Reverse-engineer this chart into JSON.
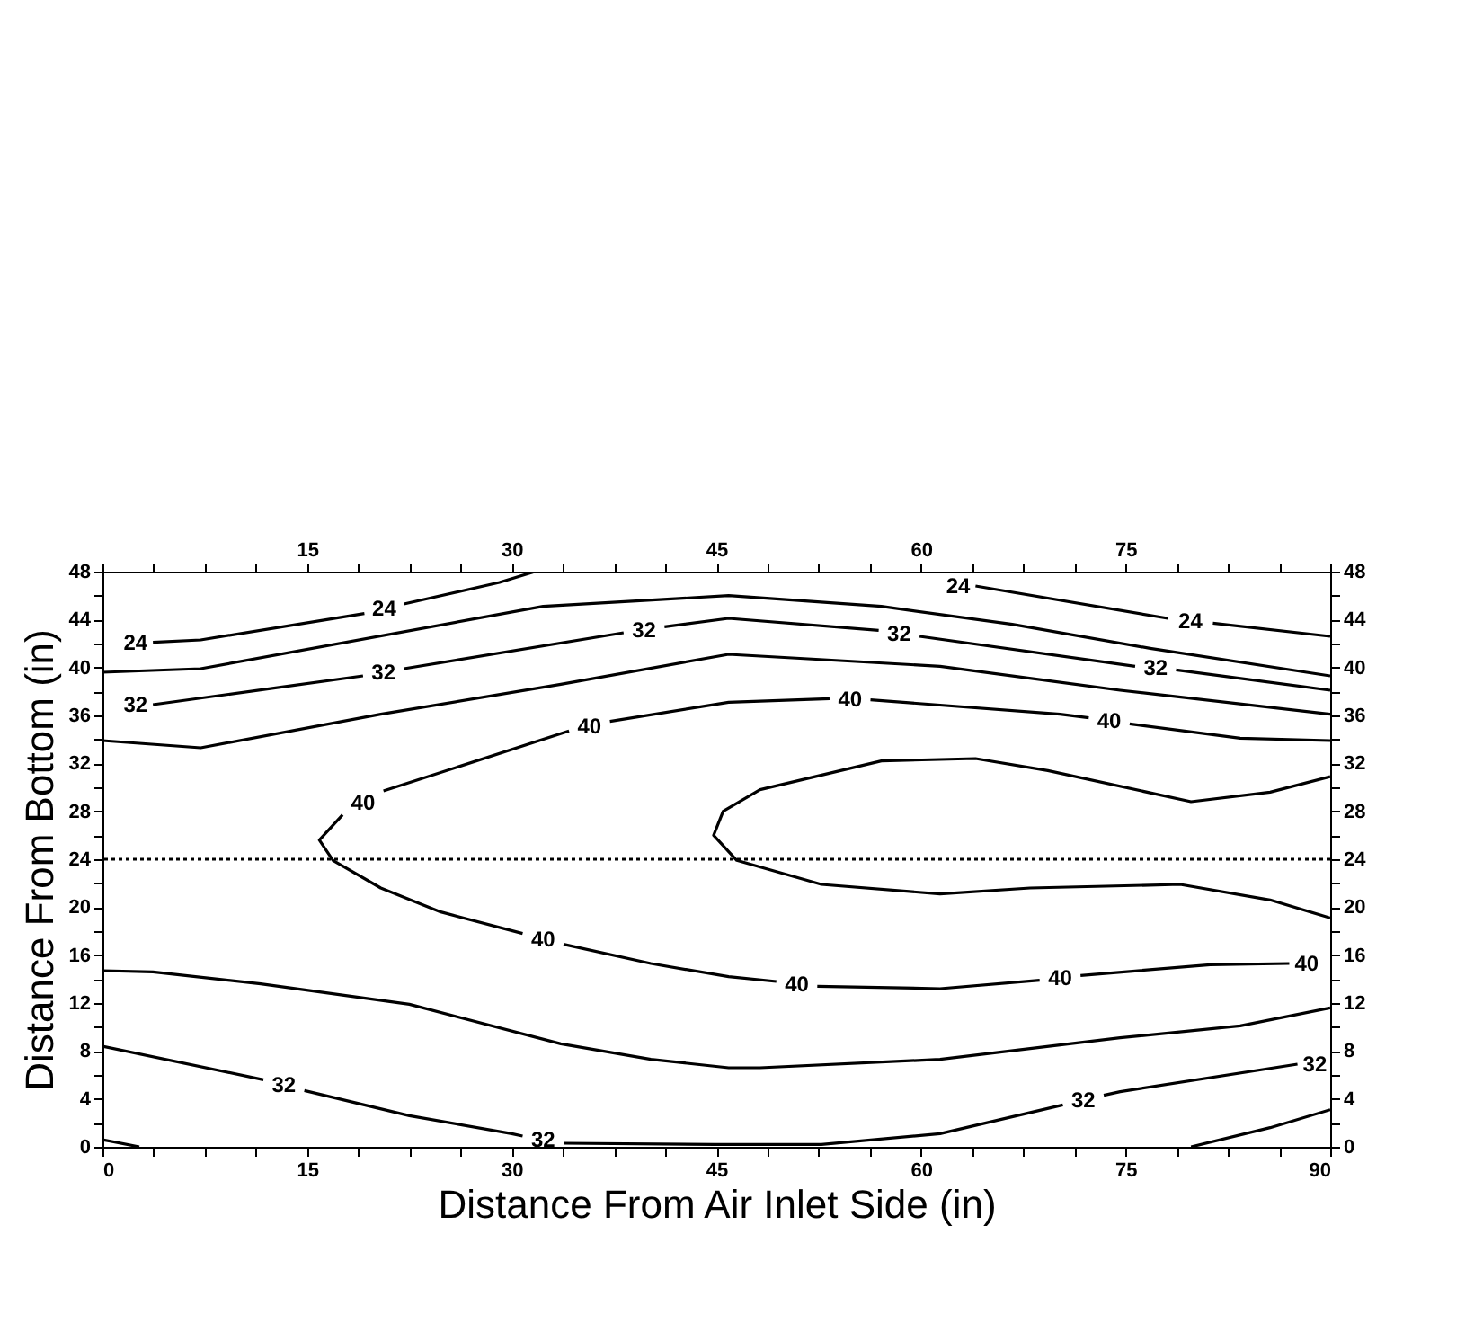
{
  "chart_data": {
    "type": "line",
    "xlabel": "Distance From Air Inlet Side (in)",
    "ylabel": "Distance From Bottom (in)",
    "xlim": [
      0,
      90
    ],
    "ylim": [
      0,
      48
    ],
    "x2lim": [
      0,
      90
    ],
    "y2lim": [
      0,
      48
    ],
    "xticks": [
      0,
      {
        "value": 3.75,
        "label": null
      },
      {
        "value": 7.5,
        "label": null
      },
      {
        "value": 11.25,
        "label": null
      },
      15,
      {
        "value": 18.75,
        "label": null
      },
      {
        "value": 22.5,
        "label": null
      },
      {
        "value": 26.25,
        "label": null
      },
      30,
      {
        "value": 33.75,
        "label": null
      },
      {
        "value": 37.5,
        "label": null
      },
      {
        "value": 41.25,
        "label": null
      },
      45,
      {
        "value": 48.75,
        "label": null
      },
      {
        "value": 52.5,
        "label": null
      },
      {
        "value": 56.25,
        "label": null
      },
      60,
      {
        "value": 63.75,
        "label": null
      },
      {
        "value": 67.5,
        "label": null
      },
      {
        "value": 71.25,
        "label": null
      },
      75,
      {
        "value": 78.75,
        "label": null
      },
      {
        "value": 82.5,
        "label": null
      },
      {
        "value": 86.25,
        "label": null
      },
      90
    ],
    "x2ticks": [
      {
        "value": 0,
        "label": null
      },
      {
        "value": 3.75,
        "label": null
      },
      {
        "value": 7.5,
        "label": null
      },
      {
        "value": 11.25,
        "label": null
      },
      15,
      {
        "value": 18.75,
        "label": null
      },
      {
        "value": 22.5,
        "label": null
      },
      {
        "value": 26.25,
        "label": null
      },
      30,
      {
        "value": 33.75,
        "label": null
      },
      {
        "value": 37.5,
        "label": null
      },
      {
        "value": 41.25,
        "label": null
      },
      45,
      {
        "value": 48.75,
        "label": null
      },
      {
        "value": 52.5,
        "label": null
      },
      {
        "value": 56.25,
        "label": null
      },
      60,
      {
        "value": 63.75,
        "label": null
      },
      {
        "value": 67.5,
        "label": null
      },
      {
        "value": 71.25,
        "label": null
      },
      75,
      {
        "value": 78.75,
        "label": null
      },
      {
        "value": 82.5,
        "label": null
      },
      {
        "value": 86.25,
        "label": null
      },
      {
        "value": 90,
        "label": null
      }
    ],
    "yticks": [
      0,
      {
        "value": 2,
        "label": null
      },
      4,
      {
        "value": 6,
        "label": null
      },
      8,
      {
        "value": 10,
        "label": null
      },
      12,
      {
        "value": 14,
        "label": null
      },
      16,
      {
        "value": 18,
        "label": null
      },
      20,
      {
        "value": 22,
        "label": null
      },
      24,
      {
        "value": 26,
        "label": null
      },
      28,
      {
        "value": 30,
        "label": null
      },
      32,
      {
        "value": 34,
        "label": null
      },
      36,
      {
        "value": 38,
        "label": null
      },
      40,
      {
        "value": 42,
        "label": null
      },
      44,
      {
        "value": 46,
        "label": null
      },
      48
    ],
    "y2ticks": [
      0,
      {
        "value": 2,
        "label": null
      },
      4,
      {
        "value": 6,
        "label": null
      },
      8,
      {
        "value": 10,
        "label": null
      },
      12,
      {
        "value": 14,
        "label": null
      },
      16,
      {
        "value": 18,
        "label": null
      },
      20,
      {
        "value": 22,
        "label": null
      },
      24,
      {
        "value": 26,
        "label": null
      },
      28,
      {
        "value": 30,
        "label": null
      },
      32,
      {
        "value": 34,
        "label": null
      },
      36,
      {
        "value": 38,
        "label": null
      },
      40,
      {
        "value": 42,
        "label": null
      },
      44,
      {
        "value": 46,
        "label": null
      },
      48
    ],
    "series": [
      {
        "color": "#000000",
        "x": [
          3.7,
          7.2,
          19.2,
          20.6,
          22.1,
          29.1,
          31.7
        ],
        "values": [
          42.1,
          42.3,
          44.5,
          null,
          45.3,
          47.1,
          48
        ]
      },
      {
        "color": "#000000",
        "x": [
          64,
          78.1,
          79.8,
          81.4,
          90
        ],
        "values": [
          46.8,
          44.1,
          null,
          43.7,
          42.6
        ]
      },
      {
        "color": "#000000",
        "x": [
          0,
          7.2,
          32.3,
          45.9,
          57.1,
          66.7,
          76.8,
          90
        ],
        "values": [
          39.6,
          39.9,
          45.1,
          46,
          45.1,
          43.6,
          41.6,
          39.3
        ]
      },
      {
        "color": "#000000",
        "x": [
          3.7,
          19.1,
          20.6,
          22.1,
          38.2,
          39.7,
          41.2,
          45.9,
          56.9,
          58.4,
          59.9,
          75.7,
          77.2,
          78.7,
          90
        ],
        "values": [
          36.9,
          39.3,
          null,
          39.9,
          42.9,
          null,
          43.4,
          44.1,
          43.1,
          null,
          42.6,
          40.1,
          null,
          39.8,
          38.1
        ]
      },
      {
        "color": "#000000",
        "x": [
          0,
          7.2,
          20.4,
          33.6,
          45.9,
          61.4,
          74.6,
          90
        ],
        "values": [
          33.9,
          33.3,
          36.1,
          38.6,
          41.1,
          40.1,
          38.1,
          36.1
        ]
      },
      {
        "color": "#000000",
        "x": [
          90,
          83.4,
          75.3,
          73.8,
          72.3,
          70.2,
          56.3,
          54.8,
          53.3,
          45.9,
          37.2,
          35.7,
          34.2,
          20.6,
          19.1,
          17.6,
          15.9,
          16.9,
          20.4,
          24.8,
          30.8,
          32.3,
          33.8,
          40.2,
          45.9,
          49.4,
          50.9,
          52.4,
          61.4,
          68.7,
          70.2,
          71.7,
          81.2,
          87
        ],
        "values": [
          33.9,
          34.1,
          35.3,
          null,
          35.8,
          36.1,
          37.3,
          null,
          37.4,
          37.1,
          35.5,
          null,
          34.7,
          29.7,
          null,
          27.7,
          25.6,
          23.9,
          21.6,
          19.6,
          17.8,
          null,
          16.9,
          15.3,
          14.2,
          13.8,
          null,
          13.4,
          13.2,
          13.9,
          null,
          14.3,
          15.2,
          15.3
        ]
      },
      {
        "color": "#000000",
        "x": [
          90,
          85.6,
          79.8,
          69.3,
          64,
          57.1,
          48.2,
          45.5,
          44.8,
          46.5,
          52.7,
          61.4,
          68,
          79,
          85.6,
          90
        ],
        "values": [
          30.9,
          29.6,
          28.8,
          31.4,
          32.4,
          32.2,
          29.8,
          28,
          26,
          23.9,
          21.9,
          21.1,
          21.6,
          21.9,
          20.6,
          19.1
        ]
      },
      {
        "color": "#000000",
        "x": [
          0,
          3.7,
          11.6,
          22.5,
          33.6,
          40.2,
          45.9,
          48.2,
          61.4,
          74.6,
          83.4,
          90
        ],
        "values": [
          14.7,
          14.6,
          13.6,
          11.9,
          8.6,
          7.3,
          6.6,
          6.6,
          7.3,
          9.1,
          10.1,
          11.6
        ]
      },
      {
        "color": "#000000",
        "x": [
          0,
          11.8,
          13.3,
          14.8,
          22.5,
          30,
          30.8,
          32.3,
          33.8,
          44.9,
          52.7,
          61.4,
          70.4,
          71.9,
          73.4,
          74.6,
          87.6
        ],
        "values": [
          8.4,
          5.6,
          null,
          4.7,
          2.6,
          1.1,
          0.9,
          null,
          0.3,
          0.2,
          0.2,
          1.1,
          3.5,
          null,
          4.3,
          4.6,
          6.9
        ]
      },
      {
        "color": "#000000",
        "x": [
          0,
          2.7
        ],
        "values": [
          0.6,
          0
        ]
      },
      {
        "color": "#000000",
        "x": [
          79.8,
          85.6,
          90
        ],
        "values": [
          0,
          1.6,
          3.1
        ]
      }
    ],
    "ref_lines": [
      {
        "axis": "y",
        "value": 24,
        "line_style": "dotted",
        "color": "#000000"
      }
    ],
    "annotations": [
      {
        "text": "24",
        "x": 3.7,
        "y": 42.1
      },
      {
        "text": "24",
        "x": 19.2,
        "y": 44.5
      },
      {
        "text": "24",
        "x": 64,
        "y": 46.8
      },
      {
        "text": "24",
        "x": 78.1,
        "y": 44.1
      },
      {
        "text": "32",
        "x": 3.7,
        "y": 36.9
      },
      {
        "text": "32",
        "x": 19.1,
        "y": 39.3
      },
      {
        "text": "32",
        "x": 38.2,
        "y": 42.9
      },
      {
        "text": "32",
        "x": 56.9,
        "y": 43.1
      },
      {
        "text": "32",
        "x": 75.7,
        "y": 40.1
      },
      {
        "text": "40",
        "x": 20.6,
        "y": 29.7
      },
      {
        "text": "40",
        "x": 37.2,
        "y": 35.5
      },
      {
        "text": "40",
        "x": 56.3,
        "y": 37.3
      },
      {
        "text": "40",
        "x": 75.3,
        "y": 35.3
      },
      {
        "text": "40",
        "x": 30.8,
        "y": 17.8
      },
      {
        "text": "40",
        "x": 49.4,
        "y": 13.8
      },
      {
        "text": "40",
        "x": 68.7,
        "y": 13.9
      },
      {
        "text": "40",
        "x": 87,
        "y": 15.3
      },
      {
        "text": "32",
        "x": 11.8,
        "y": 5.6
      },
      {
        "text": "32",
        "x": 30.8,
        "y": 0.9
      },
      {
        "text": "32",
        "x": 70.4,
        "y": 3.5
      },
      {
        "text": "32",
        "x": 87.6,
        "y": 6.9
      }
    ]
  }
}
